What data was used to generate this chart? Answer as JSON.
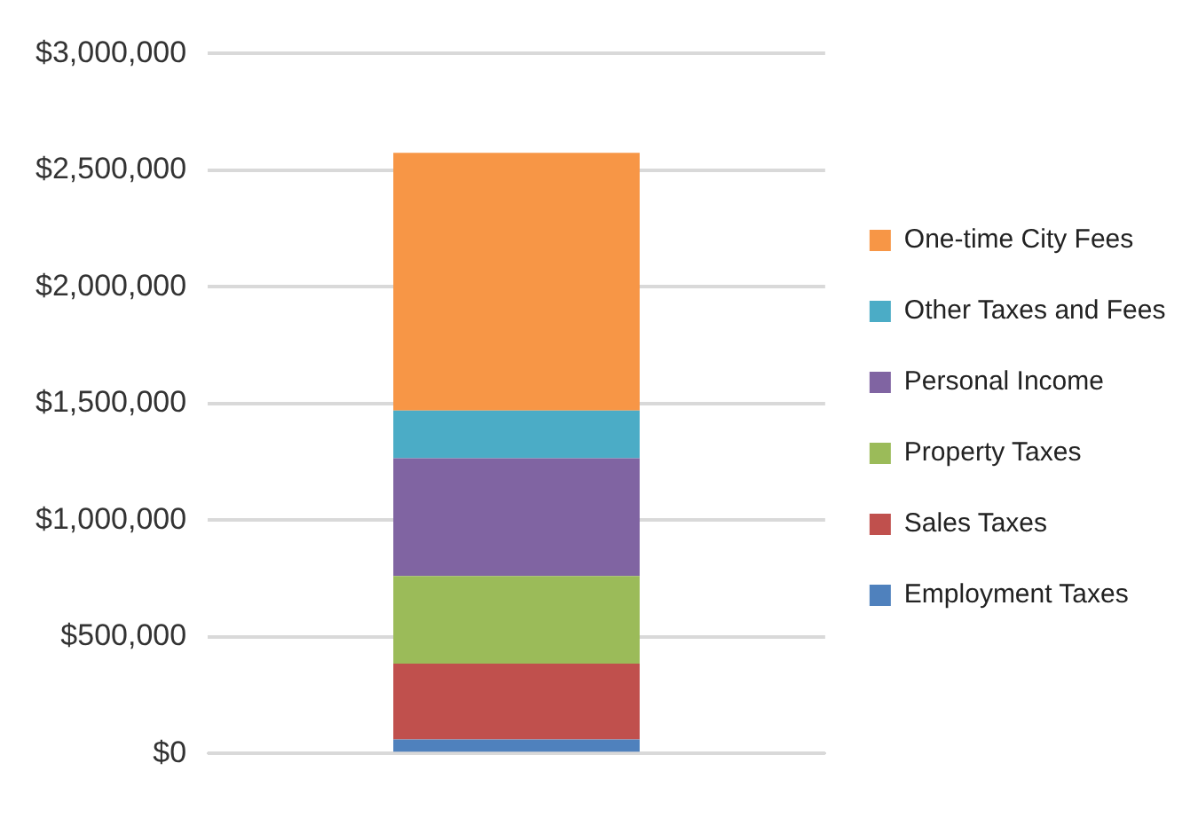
{
  "chart_data": {
    "type": "bar",
    "stacked": true,
    "categories": [
      null
    ],
    "series": [
      {
        "name": "Employment Taxes",
        "color": "#4f81bd",
        "values": [
          60000
        ]
      },
      {
        "name": "Sales Taxes",
        "color": "#c0504d",
        "values": [
          325000
        ]
      },
      {
        "name": "Property Taxes",
        "color": "#9bbb59",
        "values": [
          375000
        ]
      },
      {
        "name": "Personal Income",
        "color": "#8064a2",
        "values": [
          505000
        ]
      },
      {
        "name": "Other Taxes and Fees",
        "color": "#4bacc6",
        "values": [
          205000
        ]
      },
      {
        "name": "One-time City Fees",
        "color": "#f79646",
        "values": [
          1105000
        ]
      }
    ],
    "ylim": [
      0,
      3000000
    ],
    "yticks": [
      {
        "value": 0,
        "label": "$0"
      },
      {
        "value": 500000,
        "label": "$500,000"
      },
      {
        "value": 1000000,
        "label": "$1,000,000"
      },
      {
        "value": 1500000,
        "label": "$1,500,000"
      },
      {
        "value": 2000000,
        "label": "$2,000,000"
      },
      {
        "value": 2500000,
        "label": "$2,500,000"
      },
      {
        "value": 3000000,
        "label": "$3,000,000"
      }
    ],
    "grid": "y",
    "legend": "right"
  }
}
